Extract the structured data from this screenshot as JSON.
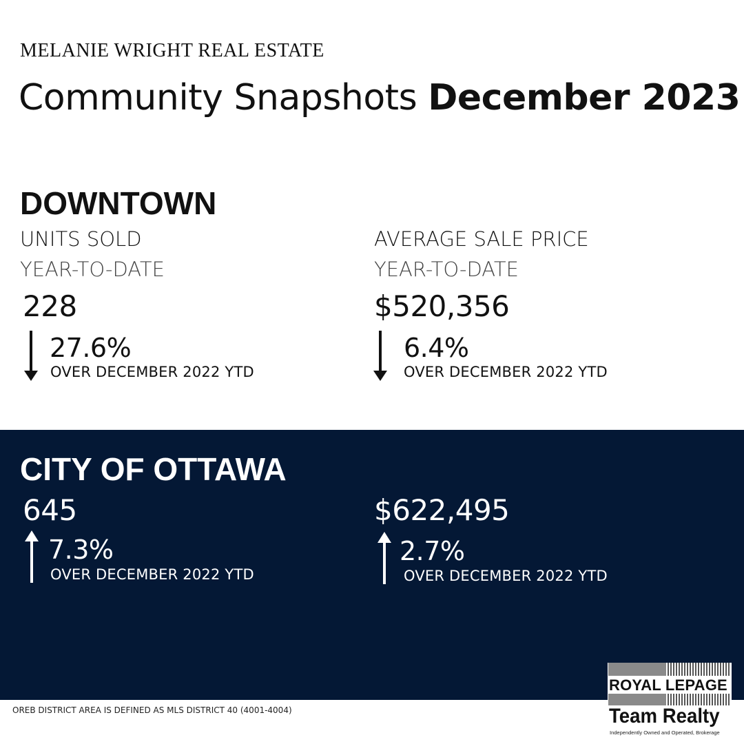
{
  "header": {
    "brand": "MELANIE WRIGHT REAL ESTATE",
    "title_regular": "Community Snapshots ",
    "title_bold": "December 2023"
  },
  "downtown": {
    "title": "DOWNTOWN",
    "units": {
      "label": "UNITS SOLD",
      "period": "YEAR-TO-DATE",
      "value": "228",
      "change": "27.6%",
      "direction": "down",
      "comparison": "OVER DECEMBER 2022 YTD"
    },
    "price": {
      "label": "AVERAGE SALE PRICE",
      "period": "YEAR-TO-DATE",
      "value": "$520,356",
      "change": "6.4%",
      "direction": "down",
      "comparison": "OVER DECEMBER 2022 YTD"
    }
  },
  "ottawa": {
    "title": "CITY OF OTTAWA",
    "units": {
      "value": "645",
      "change": "7.3%",
      "direction": "up",
      "comparison": "OVER DECEMBER 2022 YTD"
    },
    "price": {
      "value": "$622,495",
      "change": "2.7%",
      "direction": "up",
      "comparison": "OVER DECEMBER 2022 YTD"
    }
  },
  "footnote": "OREB DISTRICT AREA IS DEFINED AS MLS DISTRICT 40 (4001-4004)",
  "logo": {
    "royal": "ROYAL LEPAGE",
    "team": "Team Realty",
    "tagline": "Independently Owned and Operated, Brokerage"
  },
  "colors": {
    "navy": "#041835",
    "text": "#111111",
    "white": "#ffffff"
  },
  "icons": {
    "down": "arrow-down-icon",
    "up": "arrow-up-icon"
  }
}
